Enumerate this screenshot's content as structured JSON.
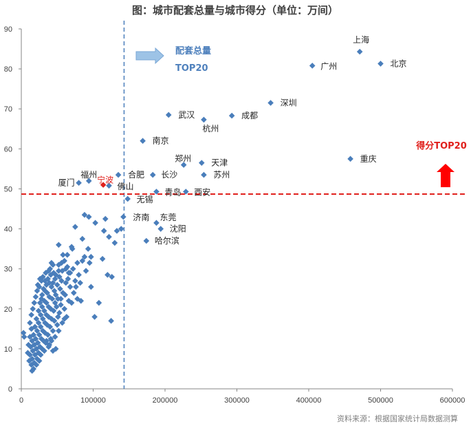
{
  "chart_data": {
    "type": "scatter",
    "title": "图：城市配套总量与城市得分（单位：万间）",
    "source": "资料来源：根据国家统计局数据测算",
    "xlim": [
      0,
      600000
    ],
    "ylim": [
      0,
      90
    ],
    "x_ticks": [
      "0",
      "100000",
      "200000",
      "300000",
      "400000",
      "500000",
      "600000"
    ],
    "y_ticks": [
      "0",
      "10",
      "20",
      "30",
      "40",
      "50",
      "60",
      "70",
      "80",
      "90"
    ],
    "marker_color": "#4a7ebb",
    "highlight_color": "#e0201c",
    "vline": {
      "x": 143000,
      "label_lines": [
        "配套总量",
        "TOP20"
      ],
      "color": "#4a7ebb"
    },
    "hline": {
      "y": 48.7,
      "label": "得分TOP20",
      "color": "#e0201c"
    },
    "labeled_points": [
      {
        "name": "上海",
        "x": 471000,
        "y": 84.3
      },
      {
        "name": "北京",
        "x": 500000,
        "y": 81.3
      },
      {
        "name": "广州",
        "x": 405000,
        "y": 80.8
      },
      {
        "name": "深圳",
        "x": 347000,
        "y": 71.5
      },
      {
        "name": "武汉",
        "x": 205000,
        "y": 68.5
      },
      {
        "name": "成都",
        "x": 293000,
        "y": 68.3
      },
      {
        "name": "杭州",
        "x": 254000,
        "y": 67.3
      },
      {
        "name": "南京",
        "x": 169000,
        "y": 62.0
      },
      {
        "name": "重庆",
        "x": 458000,
        "y": 57.5
      },
      {
        "name": "天津",
        "x": 251000,
        "y": 56.5
      },
      {
        "name": "郑州",
        "x": 226000,
        "y": 56.0
      },
      {
        "name": "苏州",
        "x": 254000,
        "y": 53.5
      },
      {
        "name": "合肥",
        "x": 135000,
        "y": 53.5
      },
      {
        "name": "长沙",
        "x": 183000,
        "y": 53.5
      },
      {
        "name": "厦门",
        "x": 80000,
        "y": 51.5
      },
      {
        "name": "福州",
        "x": 94000,
        "y": 52.0
      },
      {
        "name": "宁波",
        "x": 114000,
        "y": 51.0,
        "highlight": true
      },
      {
        "name": "佛山",
        "x": 122000,
        "y": 50.8
      },
      {
        "name": "青岛",
        "x": 188000,
        "y": 49.3
      },
      {
        "name": "西安",
        "x": 229000,
        "y": 49.3
      },
      {
        "name": "无锡",
        "x": 148000,
        "y": 47.5
      },
      {
        "name": "济南",
        "x": 142000,
        "y": 43.0
      },
      {
        "name": "东莞",
        "x": 188000,
        "y": 41.5
      },
      {
        "name": "沈阳",
        "x": 194000,
        "y": 40.0
      },
      {
        "name": "哈尔滨",
        "x": 174000,
        "y": 37.0
      }
    ],
    "points": [
      [
        88000,
        43.5
      ],
      [
        94000,
        43.0
      ],
      [
        103000,
        41.5
      ],
      [
        117000,
        42.5
      ],
      [
        75000,
        40.5
      ],
      [
        115000,
        39.5
      ],
      [
        133000,
        39.5
      ],
      [
        139000,
        40.0
      ],
      [
        122000,
        38.0
      ],
      [
        130000,
        36.5
      ],
      [
        85000,
        37.5
      ],
      [
        70000,
        35.5
      ],
      [
        71000,
        35.0
      ],
      [
        93000,
        35.0
      ],
      [
        97000,
        33.0
      ],
      [
        85000,
        32.0
      ],
      [
        113000,
        32.5
      ],
      [
        88000,
        33.0
      ],
      [
        95000,
        31.5
      ],
      [
        78000,
        31.5
      ],
      [
        64000,
        33.5
      ],
      [
        52000,
        36.0
      ],
      [
        60000,
        32.0
      ],
      [
        42000,
        31.5
      ],
      [
        52000,
        31.0
      ],
      [
        62000,
        30.0
      ],
      [
        57000,
        29.5
      ],
      [
        68000,
        29.0
      ],
      [
        72000,
        30.0
      ],
      [
        45000,
        29.0
      ],
      [
        38000,
        29.5
      ],
      [
        48000,
        28.5
      ],
      [
        53000,
        28.0
      ],
      [
        65000,
        27.5
      ],
      [
        75000,
        27.0
      ],
      [
        80000,
        28.5
      ],
      [
        90000,
        29.5
      ],
      [
        120000,
        28.5
      ],
      [
        126000,
        28.0
      ],
      [
        97000,
        25.5
      ],
      [
        108000,
        21.5
      ],
      [
        102000,
        18.0
      ],
      [
        125000,
        17.0
      ],
      [
        83000,
        22.0
      ],
      [
        73000,
        24.0
      ],
      [
        55000,
        22.5
      ],
      [
        60000,
        20.0
      ],
      [
        63000,
        18.0
      ],
      [
        57000,
        16.5
      ],
      [
        52000,
        14.5
      ],
      [
        48000,
        10.0
      ],
      [
        44000,
        9.5
      ],
      [
        33000,
        27.0
      ],
      [
        35000,
        26.0
      ],
      [
        39000,
        26.5
      ],
      [
        42000,
        25.5
      ],
      [
        46000,
        24.5
      ],
      [
        50000,
        26.0
      ],
      [
        54000,
        25.0
      ],
      [
        58000,
        24.0
      ],
      [
        61000,
        23.5
      ],
      [
        66000,
        22.0
      ],
      [
        36000,
        24.0
      ],
      [
        39000,
        23.0
      ],
      [
        43000,
        22.5
      ],
      [
        47000,
        21.5
      ],
      [
        51000,
        22.5
      ],
      [
        29000,
        23.5
      ],
      [
        32000,
        22.0
      ],
      [
        35000,
        21.5
      ],
      [
        38000,
        20.5
      ],
      [
        41000,
        20.0
      ],
      [
        45000,
        19.5
      ],
      [
        49000,
        20.5
      ],
      [
        53000,
        19.0
      ],
      [
        26000,
        21.5
      ],
      [
        29000,
        20.5
      ],
      [
        32000,
        19.5
      ],
      [
        35000,
        18.5
      ],
      [
        38000,
        18.0
      ],
      [
        42000,
        17.5
      ],
      [
        46000,
        17.0
      ],
      [
        50000,
        16.0
      ],
      [
        24000,
        19.5
      ],
      [
        27000,
        18.5
      ],
      [
        30000,
        17.5
      ],
      [
        33000,
        16.5
      ],
      [
        36000,
        16.0
      ],
      [
        40000,
        15.5
      ],
      [
        44000,
        14.5
      ],
      [
        21000,
        17.5
      ],
      [
        24000,
        16.5
      ],
      [
        27000,
        15.5
      ],
      [
        30000,
        14.5
      ],
      [
        33000,
        14.0
      ],
      [
        37000,
        13.5
      ],
      [
        41000,
        12.5
      ],
      [
        19000,
        15.5
      ],
      [
        22000,
        14.5
      ],
      [
        25000,
        13.5
      ],
      [
        28000,
        12.5
      ],
      [
        31000,
        12.0
      ],
      [
        34000,
        11.5
      ],
      [
        38000,
        10.5
      ],
      [
        17000,
        13.5
      ],
      [
        20000,
        12.5
      ],
      [
        23000,
        11.5
      ],
      [
        26000,
        10.5
      ],
      [
        29000,
        10.0
      ],
      [
        32000,
        9.5
      ],
      [
        15000,
        12.0
      ],
      [
        18000,
        11.0
      ],
      [
        21000,
        10.0
      ],
      [
        24000,
        9.0
      ],
      [
        27000,
        8.5
      ],
      [
        13000,
        10.5
      ],
      [
        16000,
        9.5
      ],
      [
        19000,
        8.5
      ],
      [
        22000,
        7.5
      ],
      [
        25000,
        7.0
      ],
      [
        12000,
        8.5
      ],
      [
        15000,
        7.5
      ],
      [
        18000,
        6.5
      ],
      [
        21000,
        6.0
      ],
      [
        11000,
        7.0
      ],
      [
        14000,
        6.0
      ],
      [
        17000,
        5.0
      ],
      [
        15000,
        4.5
      ],
      [
        3000,
        14.0
      ],
      [
        4000,
        13.0
      ],
      [
        12000,
        16.5
      ],
      [
        14000,
        18.5
      ],
      [
        16000,
        20.0
      ],
      [
        18000,
        21.5
      ],
      [
        20000,
        23.0
      ],
      [
        22000,
        24.5
      ],
      [
        25000,
        25.5
      ],
      [
        28000,
        27.0
      ],
      [
        30000,
        28.0
      ],
      [
        34000,
        29.0
      ],
      [
        40000,
        30.0
      ],
      [
        44000,
        31.0
      ],
      [
        47000,
        27.5
      ],
      [
        56000,
        27.0
      ],
      [
        62000,
        26.5
      ],
      [
        68000,
        25.5
      ],
      [
        76000,
        25.5
      ],
      [
        82000,
        26.5
      ],
      [
        70000,
        21.5
      ],
      [
        78000,
        22.5
      ],
      [
        12000,
        13.0
      ],
      [
        14000,
        15.0
      ],
      [
        10000,
        11.0
      ],
      [
        9000,
        9.0
      ],
      [
        23000,
        26.0
      ],
      [
        26000,
        27.5
      ],
      [
        31000,
        25.0
      ],
      [
        37000,
        27.5
      ],
      [
        41000,
        28.5
      ],
      [
        56000,
        31.5
      ],
      [
        58000,
        33.5
      ],
      [
        66000,
        29.0
      ],
      [
        48000,
        23.5
      ],
      [
        55000,
        21.0
      ],
      [
        60000,
        17.5
      ],
      [
        35000,
        12.0
      ],
      [
        39000,
        11.0
      ],
      [
        42000,
        12.0
      ],
      [
        47000,
        13.0
      ],
      [
        51000,
        18.0
      ],
      [
        28000,
        22.5
      ],
      [
        33000,
        24.5
      ],
      [
        44000,
        26.5
      ],
      [
        52000,
        29.5
      ],
      [
        64000,
        30.5
      ]
    ]
  }
}
